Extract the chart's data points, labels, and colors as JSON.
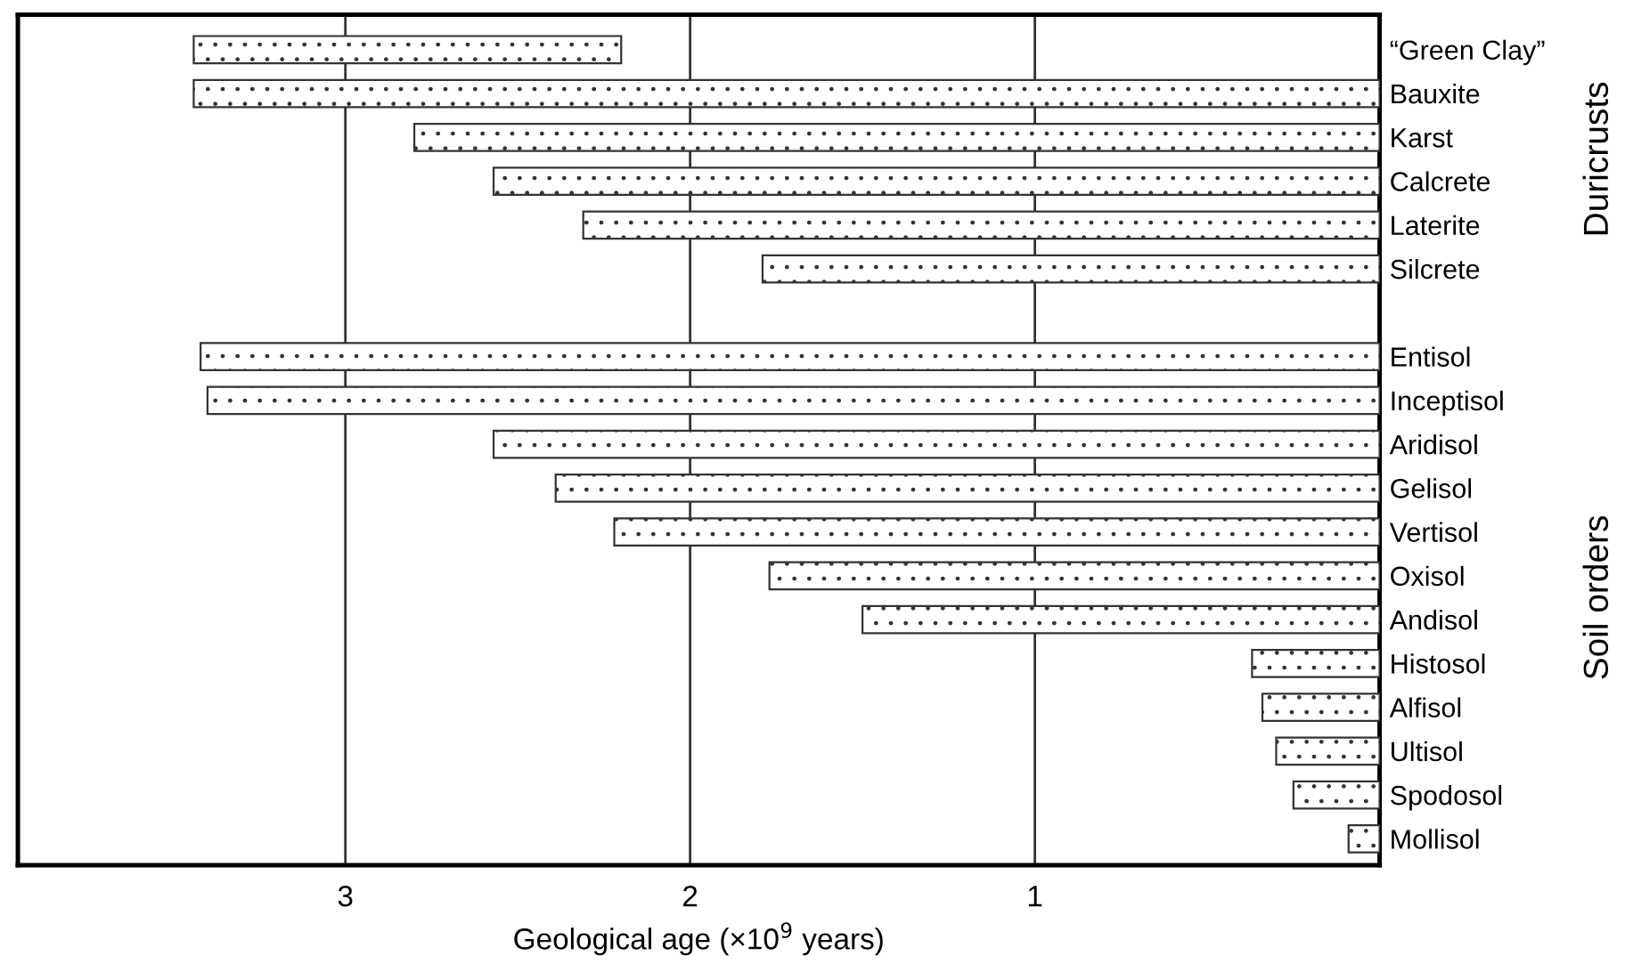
{
  "chart_data": {
    "type": "bar",
    "orientation": "horizontal",
    "xlabel": "Geological age (×10$^{9}$ years)",
    "categories": [
      "“Green Clay”",
      "Bauxite",
      "Karst",
      "Calcrete",
      "Laterite",
      "Silcrete",
      null,
      "Entisol",
      "Inceptisol",
      "Aridisol",
      "Gelisol",
      "Vertisol",
      "Oxisol",
      "Andisol",
      "Histosol",
      "Alfisol",
      "Ultisol",
      "Spodosol",
      "Mollisol"
    ],
    "values": [
      1.24,
      3.44,
      2.8,
      2.57,
      2.31,
      1.79,
      null,
      3.42,
      3.4,
      2.57,
      2.39,
      2.22,
      1.77,
      1.5,
      0.37,
      0.34,
      0.3,
      0.25,
      0.09
    ],
    "base": [
      2.2,
      0,
      0,
      0,
      0,
      0,
      null,
      0,
      0,
      0,
      0,
      0,
      0,
      0,
      0,
      0,
      0,
      0,
      0
    ],
    "color": "#333333",
    "xlim": [
      3.95,
      0
    ],
    "xticks": [
      3,
      2,
      1
    ],
    "grid": "x",
    "annotations": [
      "Duricrusts",
      "Soil orders"
    ]
  }
}
